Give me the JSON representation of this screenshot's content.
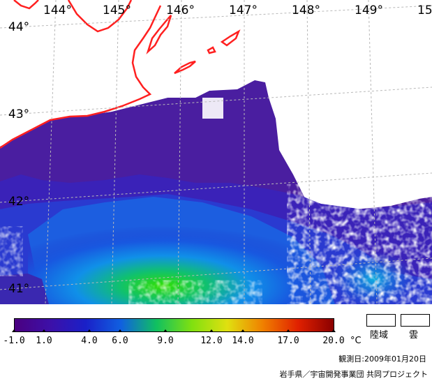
{
  "map": {
    "longitude_labels": [
      "144°",
      "145°",
      "146°",
      "147°",
      "148°",
      "149°",
      "15"
    ],
    "latitude_labels": [
      "44°",
      "43°",
      "42°",
      "41°"
    ]
  },
  "legend": {
    "scale_labels": [
      "-1.0",
      "1.0",
      "4.0",
      "6.0",
      "9.0",
      "12.0",
      "14.0",
      "17.0",
      "20.0"
    ],
    "unit": "°C",
    "land_label": "陸域",
    "cloud_label": "雲",
    "colors": {
      "gradient": [
        "#4a0080",
        "#3d10a8",
        "#1a20c8",
        "#1060e0",
        "#10c060",
        "#80e010",
        "#e0e010",
        "#f08000",
        "#e02000",
        "#8a0000"
      ],
      "coast": "#ff2020",
      "land": "#ffffff",
      "cloud": "#ffffff"
    }
  },
  "footer": {
    "observation_date": "観測日:2009年01月20日",
    "credit": "岩手県／宇宙開発事業団 共同プロジェクト"
  }
}
